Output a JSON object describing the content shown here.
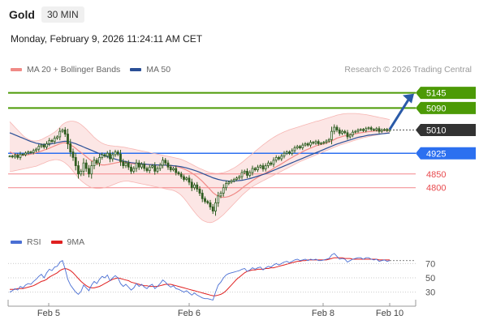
{
  "header": {
    "title": "Gold",
    "timeframe": "30 MIN",
    "datetime": "Monday, February 9, 2026 11:24:11 AM CET"
  },
  "source": "Research © 2026 Trading Central",
  "legend_main": [
    {
      "label": "MA 20 + Bollinger Bands",
      "color": "#f08a86"
    },
    {
      "label": "MA 50",
      "color": "#2a4f96"
    }
  ],
  "legend_rsi": [
    {
      "label": "RSI",
      "color": "#4a6fd4"
    },
    {
      "label": "9MA",
      "color": "#e02020"
    }
  ],
  "colors": {
    "resistance": "#4c9a06",
    "pivot": "#2c70f0",
    "support": "#f4868a",
    "current": "#333333",
    "candle": "#2f5d20",
    "arrow": "#2a5aa8",
    "band": "#fbe0df"
  },
  "chart_data": {
    "type": "candlestick",
    "ylim": [
      4640,
      5200
    ],
    "x_ticks": [
      "Feb 5",
      "Feb 6",
      "Feb 8",
      "Feb 10"
    ],
    "levels": [
      {
        "value": 5145,
        "label": "5145",
        "kind": "resistance"
      },
      {
        "value": 5090,
        "label": "5090",
        "kind": "resistance"
      },
      {
        "value": 5010,
        "label": "5010",
        "kind": "current"
      },
      {
        "value": 4925,
        "label": "4925",
        "kind": "pivot"
      },
      {
        "value": 4850,
        "label": "4850",
        "kind": "support"
      },
      {
        "value": 4800,
        "label": "4800",
        "kind": "support"
      }
    ],
    "close": [
      4915,
      4912,
      4918,
      4910,
      4922,
      4920,
      4926,
      4930,
      4928,
      4935,
      4940,
      4950,
      4955,
      4948,
      4960,
      4972,
      4968,
      4980,
      4985,
      5005,
      5010,
      4995,
      4960,
      4930,
      4910,
      4880,
      4850,
      4860,
      4890,
      4870,
      4850,
      4880,
      4900,
      4890,
      4910,
      4920,
      4915,
      4925,
      4905,
      4920,
      4930,
      4922,
      4895,
      4880,
      4890,
      4875,
      4860,
      4870,
      4890,
      4875,
      4885,
      4870,
      4862,
      4875,
      4880,
      4860,
      4870,
      4882,
      4900,
      4890,
      4875,
      4865,
      4870,
      4855,
      4850,
      4840,
      4830,
      4835,
      4820,
      4800,
      4810,
      4795,
      4780,
      4760,
      4750,
      4745,
      4730,
      4715,
      4745,
      4770,
      4780,
      4800,
      4815,
      4820,
      4825,
      4830,
      4835,
      4840,
      4855,
      4860,
      4845,
      4855,
      4870,
      4865,
      4875,
      4880,
      4868,
      4880,
      4890,
      4885,
      4900,
      4910,
      4905,
      4915,
      4925,
      4930,
      4925,
      4935,
      4945,
      4950,
      4945,
      4955,
      4960,
      4955,
      4965,
      4962,
      4968,
      4960,
      4962,
      4965,
      4970,
      4975,
      5005,
      5020,
      5010,
      4998,
      5005,
      5000,
      4985,
      4992,
      5002,
      5005,
      5010,
      5012,
      5008,
      5015,
      5018,
      5012,
      5010,
      5015,
      5005,
      5010,
      5012,
      5008,
      5012
    ],
    "ma20": [
      4930,
      4926,
      4922,
      4920,
      4918,
      4918,
      4919,
      4920,
      4922,
      4924,
      4927,
      4930,
      4933,
      4937,
      4940,
      4944,
      4948,
      4952,
      4956,
      4960,
      4963,
      4963,
      4960,
      4955,
      4950,
      4943,
      4935,
      4928,
      4921,
      4913,
      4905,
      4898,
      4893,
      4888,
      4885,
      4883,
      4883,
      4884,
      4886,
      4888,
      4890,
      4892,
      4893,
      4893,
      4892,
      4890,
      4888,
      4887,
      4886,
      4886,
      4886,
      4885,
      4884,
      4884,
      4884,
      4883,
      4882,
      4882,
      4882,
      4882,
      4881,
      4880,
      4879,
      4877,
      4875,
      4872,
      4868,
      4864,
      4859,
      4853,
      4847,
      4840,
      4832,
      4823,
      4813,
      4803,
      4793,
      4782,
      4775,
      4769,
      4766,
      4765,
      4766,
      4768,
      4772,
      4777,
      4783,
      4790,
      4798,
      4806,
      4812,
      4819,
      4826,
      4832,
      4838,
      4844,
      4849,
      4854,
      4859,
      4864,
      4870,
      4876,
      4881,
      4887,
      4893,
      4899,
      4905,
      4910,
      4916,
      4921,
      4926,
      4931,
      4936,
      4940,
      4944,
      4948,
      4952,
      4955,
      4957,
      4960,
      4963,
      4966,
      4970,
      4975,
      4980,
      4983,
      4986,
      4989,
      4990,
      4992,
      4994,
      4996,
      4998,
      5000,
      5001,
      5003,
      5004,
      5005,
      5006,
      5007,
      5007,
      5008,
      5008,
      5008,
      5009
    ],
    "bb_upper": [
      5040,
      5030,
      5020,
      5010,
      5000,
      4990,
      4982,
      4976,
      4972,
      4970,
      4970,
      4972,
      4975,
      4980,
      4985,
      4990,
      4996,
      5002,
      5010,
      5020,
      5030,
      5036,
      5040,
      5042,
      5042,
      5040,
      5036,
      5030,
      5022,
      5013,
      5003,
      4993,
      4983,
      4975,
      4968,
      4962,
      4958,
      4955,
      4953,
      4952,
      4951,
      4950,
      4949,
      4948,
      4946,
      4944,
      4942,
      4940,
      4938,
      4936,
      4934,
      4932,
      4930,
      4928,
      4926,
      4924,
      4922,
      4920,
      4918,
      4916,
      4914,
      4912,
      4910,
      4908,
      4906,
      4903,
      4899,
      4895,
      4890,
      4885,
      4880,
      4875,
      4870,
      4866,
      4862,
      4858,
      4855,
      4853,
      4852,
      4852,
      4853,
      4855,
      4858,
      4862,
      4867,
      4872,
      4878,
      4885,
      4892,
      4900,
      4908,
      4916,
      4924,
      4932,
      4940,
      4948,
      4956,
      4963,
      4970,
      4977,
      4983,
      4989,
      4994,
      4999,
      5003,
      5007,
      5011,
      5014,
      5017,
      5020,
      5023,
      5026,
      5029,
      5032,
      5035,
      5038,
      5041,
      5043,
      5046,
      5049,
      5052,
      5055,
      5058,
      5061,
      5064,
      5066,
      5068,
      5069,
      5070,
      5070,
      5070,
      5070,
      5069,
      5068,
      5067,
      5066,
      5064,
      5062,
      5060,
      5058,
      5056,
      5054,
      5052,
      5050,
      5048
    ],
    "bb_lower": [
      4860,
      4860,
      4862,
      4864,
      4866,
      4868,
      4870,
      4872,
      4874,
      4876,
      4878,
      4882,
      4886,
      4890,
      4894,
      4898,
      4900,
      4902,
      4902,
      4900,
      4896,
      4890,
      4882,
      4872,
      4860,
      4848,
      4836,
      4826,
      4818,
      4811,
      4805,
      4800,
      4798,
      4797,
      4797,
      4798,
      4800,
      4803,
      4806,
      4810,
      4814,
      4818,
      4821,
      4823,
      4824,
      4824,
      4822,
      4820,
      4818,
      4816,
      4814,
      4812,
      4810,
      4808,
      4806,
      4804,
      4802,
      4800,
      4798,
      4796,
      4794,
      4792,
      4790,
      4786,
      4780,
      4772,
      4762,
      4750,
      4737,
      4724,
      4712,
      4700,
      4690,
      4682,
      4677,
      4674,
      4673,
      4675,
      4680,
      4686,
      4694,
      4702,
      4712,
      4722,
      4732,
      4742,
      4752,
      4762,
      4772,
      4781,
      4789,
      4797,
      4804,
      4810,
      4815,
      4820,
      4825,
      4830,
      4835,
      4840,
      4845,
      4850,
      4855,
      4860,
      4865,
      4870,
      4875,
      4880,
      4885,
      4890,
      4895,
      4899,
      4903,
      4907,
      4911,
      4915,
      4919,
      4923,
      4927,
      4931,
      4935,
      4939,
      4943,
      4947,
      4951,
      4955,
      4958,
      4961,
      4964,
      4967,
      4970,
      4973,
      4976,
      4979,
      4982,
      4984,
      4986,
      4988,
      4990,
      4992,
      4994,
      4996,
      4998,
      5000,
      5002
    ],
    "ma50": [
      5000,
      4996,
      4992,
      4988,
      4984,
      4980,
      4976,
      4972,
      4968,
      4965,
      4962,
      4960,
      4958,
      4957,
      4957,
      4958,
      4960,
      4962,
      4964,
      4966,
      4968,
      4969,
      4968,
      4966,
      4963,
      4960,
      4956,
      4952,
      4948,
      4944,
      4940,
      4936,
      4932,
      4928,
      4924,
      4920,
      4916,
      4913,
      4910,
      4907,
      4904,
      4901,
      4899,
      4897,
      4895,
      4893,
      4891,
      4890,
      4889,
      4888,
      4887,
      4886,
      4885,
      4884,
      4884,
      4883,
      4883,
      4882,
      4882,
      4882,
      4881,
      4881,
      4880,
      4879,
      4878,
      4876,
      4874,
      4872,
      4869,
      4866,
      4863,
      4860,
      4856,
      4852,
      4848,
      4844,
      4840,
      4836,
      4833,
      4830,
      4828,
      4826,
      4825,
      4824,
      4824,
      4824,
      4825,
      4826,
      4827,
      4829,
      4831,
      4833,
      4836,
      4839,
      4842,
      4845,
      4848,
      4851,
      4855,
      4859,
      4863,
      4867,
      4871,
      4875,
      4879,
      4883,
      4887,
      4891,
      4895,
      4899,
      4903,
      4907,
      4911,
      4915,
      4919,
      4923,
      4927,
      4931,
      4935,
      4939,
      4943,
      4947,
      4951,
      4955,
      4959,
      4962,
      4965,
      4968,
      4971,
      4974,
      4977,
      4980,
      4983,
      4985,
      4987,
      4989,
      4991,
      4992,
      4993,
      4994,
      4995,
      4996,
      4997,
      4998,
      4999
    ],
    "rsi_ticks": [
      70,
      50,
      30
    ],
    "rsi_ylim": [
      15,
      85
    ],
    "rsi": [
      30,
      32,
      35,
      33,
      38,
      36,
      40,
      42,
      41,
      45,
      48,
      52,
      55,
      50,
      57,
      62,
      60,
      65,
      66,
      72,
      74,
      62,
      48,
      40,
      35,
      30,
      27,
      31,
      40,
      36,
      32,
      40,
      45,
      42,
      48,
      52,
      50,
      54,
      46,
      50,
      53,
      50,
      42,
      38,
      41,
      37,
      33,
      36,
      42,
      38,
      41,
      37,
      35,
      39,
      41,
      35,
      38,
      42,
      47,
      44,
      40,
      37,
      39,
      35,
      34,
      32,
      30,
      32,
      29,
      26,
      29,
      26,
      24,
      22,
      21,
      21,
      20,
      19,
      30,
      40,
      44,
      50,
      54,
      56,
      57,
      58,
      59,
      60,
      62,
      63,
      59,
      61,
      64,
      62,
      64,
      65,
      61,
      64,
      66,
      65,
      68,
      70,
      68,
      70,
      72,
      73,
      71,
      73,
      75,
      76,
      74,
      75,
      76,
      74,
      76,
      75,
      76,
      74,
      74,
      75,
      76,
      77,
      82,
      84,
      80,
      76,
      77,
      76,
      72,
      74,
      76,
      77,
      78,
      78,
      76,
      78,
      78,
      76,
      75,
      76,
      73,
      74,
      75,
      73,
      74
    ],
    "rsi_ma": [
      34,
      34,
      34,
      35,
      35,
      35,
      36,
      37,
      38,
      39,
      41,
      43,
      45,
      46,
      48,
      51,
      53,
      55,
      57,
      60,
      62,
      63,
      62,
      60,
      57,
      53,
      49,
      45,
      42,
      39,
      37,
      36,
      36,
      37,
      38,
      40,
      42,
      44,
      46,
      48,
      49,
      50,
      49,
      48,
      47,
      46,
      44,
      43,
      42,
      41,
      40,
      39,
      39,
      38,
      38,
      38,
      38,
      39,
      40,
      41,
      41,
      41,
      40,
      39,
      38,
      37,
      36,
      35,
      34,
      33,
      32,
      31,
      30,
      29,
      28,
      27,
      26,
      25,
      25,
      26,
      27,
      29,
      32,
      36,
      40,
      44,
      48,
      51,
      54,
      57,
      59,
      60,
      61,
      61,
      62,
      62,
      62,
      63,
      63,
      64,
      64,
      65,
      66,
      67,
      68,
      69,
      70,
      71,
      72,
      73,
      73,
      74,
      74,
      75,
      75,
      75,
      75,
      75,
      75,
      75,
      75,
      76,
      77,
      78,
      78,
      78,
      78,
      77,
      77,
      77,
      76,
      76,
      76,
      76,
      76,
      76,
      76,
      76,
      76,
      76,
      75,
      75,
      75,
      75,
      75
    ]
  }
}
